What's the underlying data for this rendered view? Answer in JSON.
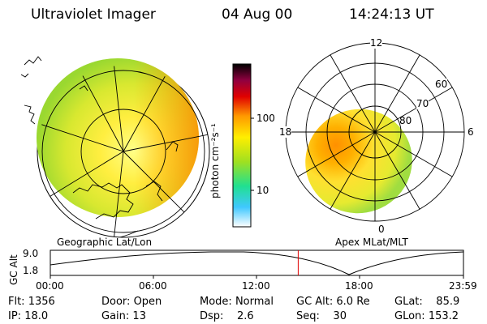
{
  "header": {
    "title": "Ultraviolet Imager",
    "date": "04 Aug 00",
    "time": "14:24:13 UT"
  },
  "colorbar": {
    "label": "photon cm⁻²s⁻¹",
    "ticks": [
      "100",
      "10"
    ]
  },
  "panels": {
    "geo_label": "Geographic Lat/Lon",
    "apex_label": "Apex MLat/MLT"
  },
  "polar": {
    "mlt_labels": {
      "top": "12",
      "left": "18",
      "right": "6",
      "bottom": "0"
    },
    "lat_labels": [
      "60",
      "70",
      "80"
    ]
  },
  "timeline": {
    "axis_label": "GC Alt",
    "y_ticks": [
      "9.0",
      "1.8"
    ],
    "x_ticks": [
      "00:00",
      "06:00",
      "12:00",
      "18:00",
      "23:59"
    ],
    "current_time_fraction": 0.6
  },
  "info": {
    "flt_label": "Flt:",
    "flt_value": "1356",
    "ip_label": "IP:",
    "ip_value": "18.0",
    "door_label": "Door:",
    "door_value": "Open",
    "gain_label": "Gain:",
    "gain_value": "13",
    "mode_label": "Mode:",
    "mode_value": "Normal",
    "dsp_label": "Dsp:",
    "dsp_value": "2.6",
    "gcalt_label": "GC Alt:",
    "gcalt_value": "6.0 Re",
    "seq_label": "Seq:",
    "seq_value": "30",
    "glat_label": "GLat:",
    "glat_value": "85.9",
    "glon_label": "GLon:",
    "glon_value": "153.2"
  },
  "colors": {
    "marker": "#e00000",
    "bar_stops": [
      "#ffffff",
      "#40c8ff",
      "#20e090",
      "#a0e020",
      "#ffee00",
      "#ff9900",
      "#e00000",
      "#000000"
    ]
  }
}
